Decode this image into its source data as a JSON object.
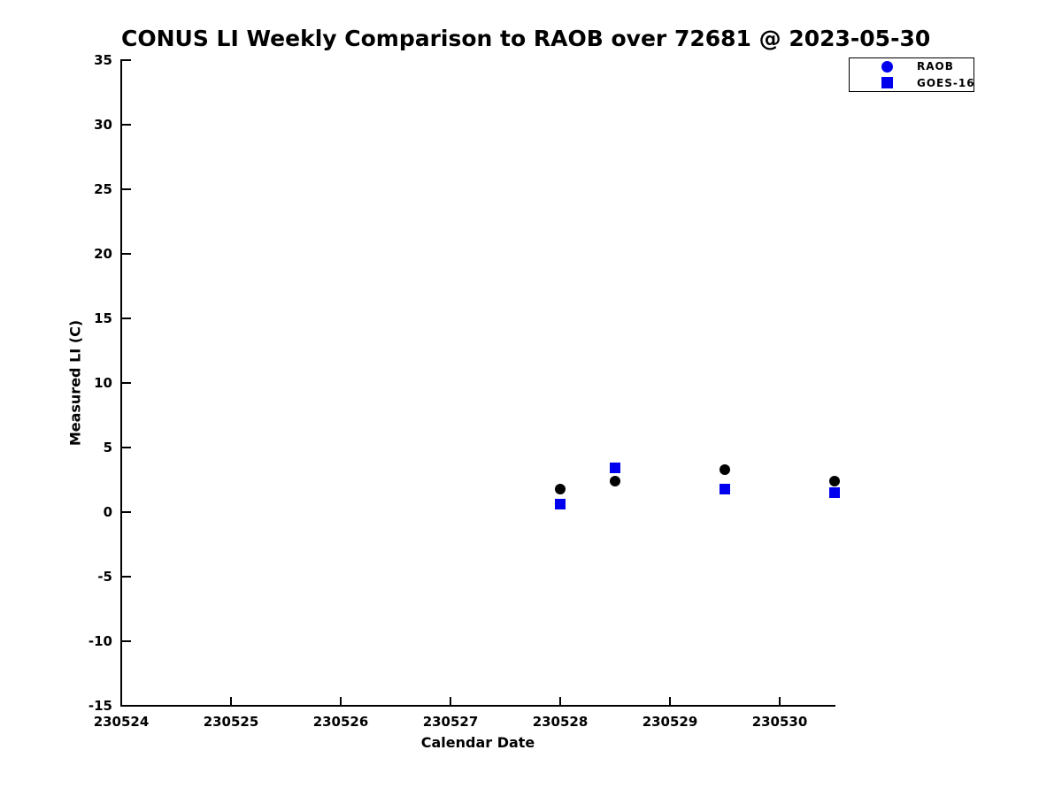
{
  "figure": {
    "background": "#ffffff",
    "text_color": "#000000"
  },
  "chart_data": {
    "type": "scatter",
    "title": "CONUS LI Weekly Comparison to RAOB over 72681 @ 2023-05-30",
    "xlabel": "Calendar Date",
    "ylabel": "Measured LI (C)",
    "xlim": [
      230524,
      230530.5
    ],
    "ylim": [
      -15,
      35
    ],
    "xticks": [
      230524,
      230525,
      230526,
      230527,
      230528,
      230529,
      230530
    ],
    "yticks": [
      35,
      30,
      25,
      20,
      15,
      10,
      5,
      0,
      -5,
      -10,
      -15
    ],
    "grid": false,
    "legend": {
      "position": "top-right",
      "border_color": "#000000",
      "background": "#ffffff"
    },
    "series": [
      {
        "name": "RAOB",
        "marker": "circle",
        "color": "#000000",
        "legend_marker_color": "#0000ee",
        "points": [
          {
            "x": 230528.0,
            "y": 1.8
          },
          {
            "x": 230528.5,
            "y": 2.4
          },
          {
            "x": 230529.5,
            "y": 3.3
          },
          {
            "x": 230530.5,
            "y": 2.4
          }
        ]
      },
      {
        "name": "GOES-16",
        "marker": "square",
        "color": "#0000ee",
        "legend_marker_color": "#0000ee",
        "points": [
          {
            "x": 230528.0,
            "y": 0.6
          },
          {
            "x": 230528.5,
            "y": 3.4
          },
          {
            "x": 230529.5,
            "y": 1.8
          },
          {
            "x": 230530.5,
            "y": 1.5
          }
        ]
      }
    ]
  }
}
